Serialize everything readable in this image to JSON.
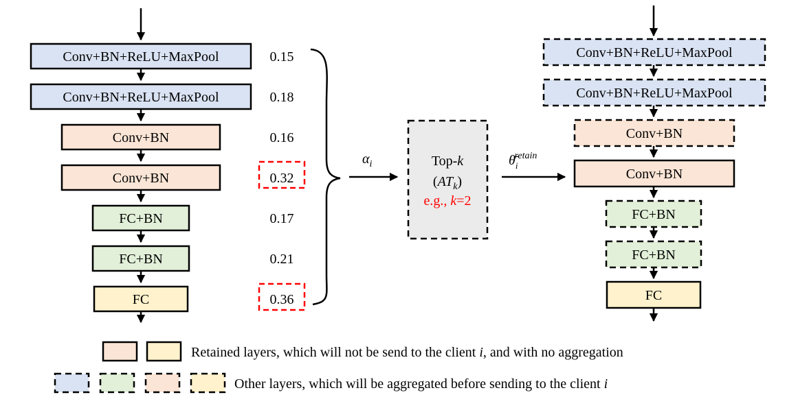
{
  "left_stack": {
    "layers": [
      {
        "label": "Conv+BN+ReLU+MaxPool",
        "weight": "0.15",
        "color": "#dae3f3",
        "selected": false
      },
      {
        "label": "Conv+BN+ReLU+MaxPool",
        "weight": "0.18",
        "color": "#dae3f3",
        "selected": false
      },
      {
        "label": "Conv+BN",
        "weight": "0.16",
        "color": "#fbe5d6",
        "selected": false
      },
      {
        "label": "Conv+BN",
        "weight": "0.32",
        "color": "#fbe5d6",
        "selected": true
      },
      {
        "label": "FC+BN",
        "weight": "0.17",
        "color": "#e2f0d9",
        "selected": false
      },
      {
        "label": "FC+BN",
        "weight": "0.21",
        "color": "#e2f0d9",
        "selected": false
      },
      {
        "label": "FC",
        "weight": "0.36",
        "color": "#fff2cc",
        "selected": true
      }
    ]
  },
  "alpha_label": {
    "symbol": "α",
    "subscript": "i"
  },
  "topk_box": {
    "line1_prefix": "Top-",
    "line1_var": "k",
    "line2_open": "(",
    "line2_var": "AT",
    "line2_sub": "k",
    "line2_close": ")",
    "example_prefix": "e.g., ",
    "example_var": "k",
    "example_suffix": "=2",
    "fill": "#ebebeb"
  },
  "theta_label": {
    "symbol": "θ̄",
    "subscript": "i",
    "superscript": "retain"
  },
  "right_stack": {
    "layers": [
      {
        "label": "Conv+BN+ReLU+MaxPool",
        "color": "#dae3f3",
        "dashed": true
      },
      {
        "label": "Conv+BN+ReLU+MaxPool",
        "color": "#dae3f3",
        "dashed": true
      },
      {
        "label": "Conv+BN",
        "color": "#fbe5d6",
        "dashed": true
      },
      {
        "label": "Conv+BN",
        "color": "#fbe5d6",
        "dashed": false
      },
      {
        "label": "FC+BN",
        "color": "#e2f0d9",
        "dashed": true
      },
      {
        "label": "FC+BN",
        "color": "#e2f0d9",
        "dashed": true
      },
      {
        "label": "FC",
        "color": "#fff2cc",
        "dashed": false
      }
    ]
  },
  "legend": {
    "retained": {
      "swatch_colors": [
        "#fbe5d6",
        "#fff2cc"
      ],
      "text": "Retained layers, which will not be send to the client ",
      "var": "i",
      "suffix": ", and with no aggregation"
    },
    "other": {
      "swatch_colors": [
        "#dae3f3",
        "#e2f0d9",
        "#fbe5d6",
        "#fff2cc"
      ],
      "text": "Other layers, which will be aggregated before sending to the client ",
      "var": "i"
    }
  }
}
